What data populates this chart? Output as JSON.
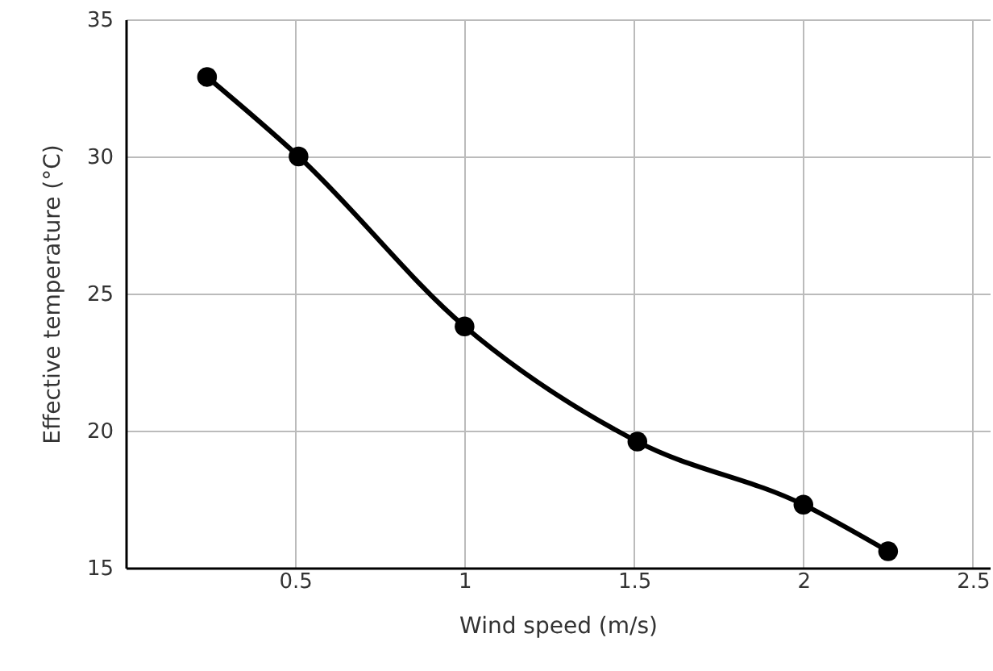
{
  "chart_data": {
    "type": "line",
    "xlabel": "Wind speed (m/s)",
    "ylabel": "Effective temperature (°C)",
    "x": [
      0.24,
      0.51,
      1.0,
      1.51,
      2.0,
      2.25
    ],
    "series": [
      {
        "color": "#000000",
        "values": [
          32.9,
          30,
          23.8,
          19.6,
          17.3,
          15.6
        ]
      }
    ],
    "xlim": [
      0,
      2.55
    ],
    "ylim": [
      15,
      35
    ],
    "xticks": [
      0.5,
      1,
      1.5,
      2,
      2.5
    ],
    "yticks": [
      15,
      20,
      25,
      30,
      35
    ],
    "grid": true,
    "marker": "circle"
  }
}
